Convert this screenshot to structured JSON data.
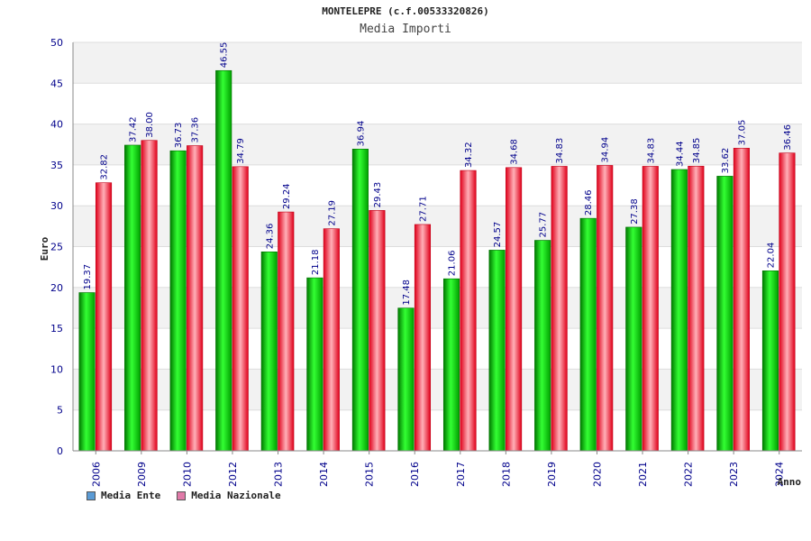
{
  "chart_data": {
    "type": "bar",
    "title": "MONTELEPRE (c.f.00533320826)",
    "subtitle": "Media Importi",
    "xlabel": "Anno",
    "ylabel": "Euro",
    "ylim": [
      0,
      50
    ],
    "yticks": [
      0,
      5,
      10,
      15,
      20,
      25,
      30,
      35,
      40,
      45,
      50
    ],
    "grid": true,
    "legend_position": "bottom-left",
    "categories": [
      "2006",
      "2009",
      "2010",
      "2012",
      "2013",
      "2014",
      "2015",
      "2016",
      "2017",
      "2018",
      "2019",
      "2020",
      "2021",
      "2022",
      "2023",
      "2024"
    ],
    "series": [
      {
        "name": "Media Ente",
        "color": "#00cc00",
        "legend_color": "#5b9bd5",
        "values": [
          19.37,
          37.42,
          36.73,
          46.55,
          24.36,
          21.18,
          36.94,
          17.48,
          21.06,
          24.57,
          25.77,
          28.46,
          27.38,
          34.44,
          33.62,
          22.04
        ],
        "labels": [
          "19.37",
          "37.42",
          "36.73",
          "46.55",
          "24.36",
          "21.18",
          "36.94",
          "17.48",
          "21.06",
          "24.57",
          "25.77",
          "28.46",
          "27.38",
          "34.44",
          "33.62",
          "22.04"
        ]
      },
      {
        "name": "Media Nazionale",
        "color": "#ee2233",
        "legend_color": "#e07aa8",
        "values": [
          32.82,
          38.0,
          37.36,
          34.79,
          29.24,
          27.19,
          29.43,
          27.71,
          34.32,
          34.68,
          34.83,
          34.94,
          34.83,
          34.85,
          37.05,
          36.46
        ],
        "labels": [
          "32.82",
          "38.00",
          "37.36",
          "34.79",
          "29.24",
          "27.19",
          "29.43",
          "27.71",
          "34.32",
          "34.68",
          "34.83",
          "34.94",
          "34.83",
          "34.85",
          "37.05",
          "36.46"
        ]
      }
    ]
  }
}
